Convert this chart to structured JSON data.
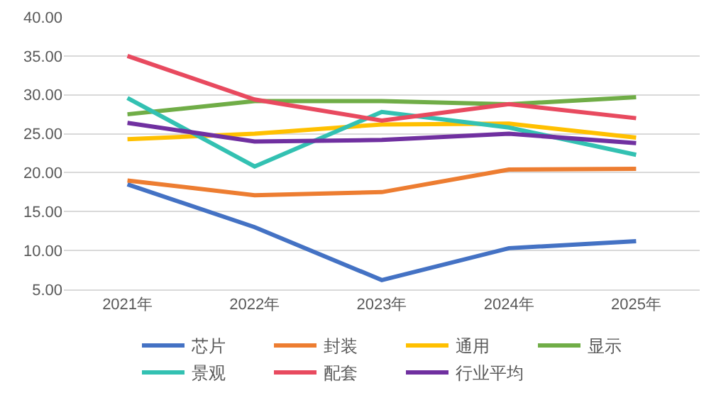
{
  "chart_data": {
    "type": "line",
    "categories": [
      "2021年",
      "2022年",
      "2023年",
      "2024年",
      "2025年"
    ],
    "series": [
      {
        "name": "芯片",
        "color": "#4472c4",
        "values": [
          18.5,
          13.0,
          6.2,
          10.3,
          11.2
        ]
      },
      {
        "name": "封装",
        "color": "#ed7d31",
        "values": [
          19.0,
          17.1,
          17.5,
          20.4,
          20.5
        ]
      },
      {
        "name": "通用",
        "color": "#ffc000",
        "values": [
          24.3,
          25.0,
          26.2,
          26.3,
          24.5
        ]
      },
      {
        "name": "显示",
        "color": "#70ad47",
        "values": [
          27.5,
          29.2,
          29.2,
          28.8,
          29.7
        ]
      },
      {
        "name": "景观",
        "color": "#33c1b2",
        "values": [
          29.6,
          20.8,
          27.8,
          25.8,
          22.3
        ]
      },
      {
        "name": "配套",
        "color": "#e84a5f",
        "values": [
          35.0,
          29.4,
          26.7,
          28.8,
          27.0
        ]
      },
      {
        "name": "行业平均",
        "color": "#7030a0",
        "values": [
          26.4,
          24.0,
          24.2,
          25.0,
          23.8
        ]
      }
    ],
    "ylim": [
      5,
      40
    ],
    "yticks": [
      {
        "value": 5,
        "label": "5.00"
      },
      {
        "value": 10,
        "label": "10.00"
      },
      {
        "value": 15,
        "label": "15.00"
      },
      {
        "value": 20,
        "label": "20.00"
      },
      {
        "value": 25,
        "label": "25.00"
      },
      {
        "value": 30,
        "label": "30.00"
      },
      {
        "value": 35,
        "label": "35.00"
      },
      {
        "value": 40,
        "label": "40.00"
      }
    ],
    "grid": "y",
    "legend": "bottom",
    "marker": "none",
    "line_style": "solid"
  }
}
